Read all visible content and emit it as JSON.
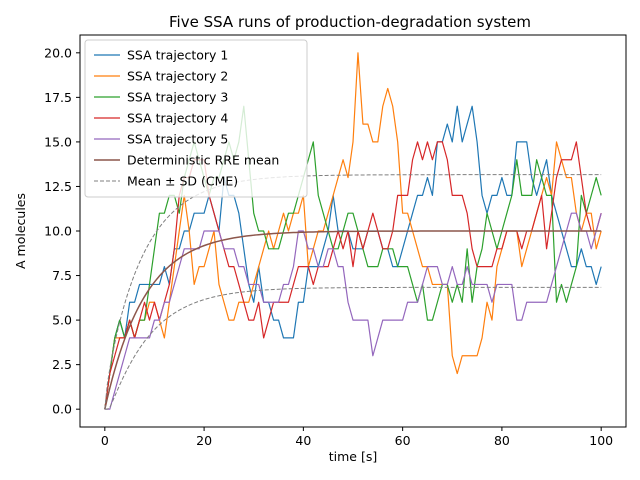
{
  "chart_data": {
    "type": "line",
    "title": "Five SSA runs of production-degradation system",
    "xlabel": "time [s]",
    "ylabel": "A molecules",
    "xlim": [
      -5,
      105
    ],
    "ylim": [
      -1.0,
      21.0
    ],
    "x_ticks": [
      0,
      20,
      40,
      60,
      80,
      100
    ],
    "y_ticks": [
      0.0,
      2.5,
      5.0,
      7.5,
      10.0,
      12.5,
      15.0,
      17.5,
      20.0
    ],
    "x_tick_labels": [
      "0",
      "20",
      "40",
      "60",
      "80",
      "100"
    ],
    "y_tick_labels": [
      "0.0",
      "2.5",
      "5.0",
      "7.5",
      "10.0",
      "12.5",
      "15.0",
      "17.5",
      "20.0"
    ],
    "legend_position": "top-left",
    "grid": false,
    "x": [
      0,
      1,
      2,
      3,
      4,
      5,
      6,
      7,
      8,
      9,
      10,
      11,
      12,
      13,
      14,
      15,
      16,
      17,
      18,
      19,
      20,
      21,
      22,
      23,
      24,
      25,
      26,
      27,
      28,
      29,
      30,
      31,
      32,
      33,
      34,
      35,
      36,
      37,
      38,
      39,
      40,
      41,
      42,
      43,
      44,
      45,
      46,
      47,
      48,
      49,
      50,
      51,
      52,
      53,
      54,
      55,
      56,
      57,
      58,
      59,
      60,
      61,
      62,
      63,
      64,
      65,
      66,
      67,
      68,
      69,
      70,
      71,
      72,
      73,
      74,
      75,
      76,
      77,
      78,
      79,
      80,
      81,
      82,
      83,
      84,
      85,
      86,
      87,
      88,
      89,
      90,
      91,
      92,
      93,
      94,
      95,
      96,
      97,
      98,
      99,
      100
    ],
    "series": [
      {
        "name": "SSA trajectory 1",
        "color": "#1f77b4",
        "style": "solid",
        "values": [
          0,
          2,
          4,
          5,
          4,
          6,
          6,
          7,
          7,
          7,
          7,
          7,
          8,
          7,
          9,
          9,
          10,
          10,
          11,
          11,
          11,
          12,
          11,
          10,
          13,
          12,
          12,
          11,
          9,
          7,
          6,
          8,
          6,
          6,
          5,
          5,
          4,
          4,
          4,
          6,
          6,
          8,
          8,
          8,
          9,
          10,
          12,
          10,
          10,
          10,
          9,
          9,
          9,
          10,
          10,
          10,
          9,
          9,
          8,
          8,
          9,
          10,
          11,
          12,
          12,
          13,
          12,
          15,
          15,
          16,
          15,
          17,
          15,
          16,
          17,
          15,
          12,
          11,
          12,
          12,
          13,
          12,
          12,
          15,
          15,
          15,
          13,
          12,
          13,
          14,
          12,
          11,
          10,
          9,
          8,
          8,
          9,
          8,
          8,
          7,
          8
        ]
      },
      {
        "name": "SSA trajectory 2",
        "color": "#ff7f0e",
        "style": "solid",
        "values": [
          0,
          2,
          4,
          4,
          4,
          5,
          4,
          5,
          5,
          6,
          6,
          5,
          4,
          6,
          8,
          10,
          12,
          10,
          7,
          8,
          8,
          9,
          10,
          7,
          6,
          5,
          5,
          6,
          6,
          6,
          7,
          8,
          9,
          10,
          9,
          10,
          11,
          10,
          11,
          11,
          12,
          8,
          9,
          10,
          10,
          11,
          12,
          13,
          14,
          13,
          15,
          20,
          16,
          16,
          15,
          15,
          17,
          18,
          17,
          15,
          11,
          11,
          10,
          9,
          8,
          8,
          7,
          7,
          7,
          7,
          3,
          2,
          3,
          3,
          3,
          3,
          4,
          6,
          5,
          8,
          9,
          10,
          10,
          10,
          8,
          9,
          10,
          11,
          12,
          13,
          12,
          15,
          14,
          13,
          13,
          11,
          10,
          11,
          11,
          9,
          10
        ]
      },
      {
        "name": "SSA trajectory 3",
        "color": "#2ca02c",
        "style": "solid",
        "values": [
          0,
          2,
          4,
          5,
          4,
          5,
          4,
          5,
          5,
          7,
          9,
          11,
          11,
          12,
          12,
          11,
          13,
          14,
          15,
          14,
          13,
          12,
          13,
          13,
          14,
          15,
          14,
          15,
          17,
          14,
          11,
          10,
          10,
          9,
          9,
          9,
          10,
          11,
          11,
          12,
          13,
          14,
          15,
          12,
          11,
          10,
          9,
          9,
          10,
          11,
          11,
          10,
          9,
          8,
          8,
          8,
          9,
          9,
          9,
          8,
          8,
          8,
          7,
          6,
          7,
          5,
          5,
          6,
          7,
          7,
          6,
          7,
          6,
          9,
          6,
          8,
          9,
          11,
          10,
          9,
          10,
          11,
          12,
          14,
          12,
          12,
          12,
          14,
          13,
          12,
          12,
          6,
          7,
          6,
          7,
          8,
          12,
          11,
          12,
          13,
          12
        ]
      },
      {
        "name": "SSA trajectory 4",
        "color": "#d62728",
        "style": "solid",
        "values": [
          0,
          2,
          3,
          4,
          4,
          5,
          4,
          5,
          6,
          5,
          6,
          5,
          6,
          7,
          9,
          12,
          13,
          13,
          14,
          14,
          14,
          12,
          11,
          10,
          9,
          8,
          8,
          7,
          6,
          5,
          5,
          6,
          4,
          5,
          6,
          6,
          6,
          6,
          7,
          8,
          8,
          8,
          7,
          8,
          8,
          8,
          9,
          10,
          9,
          10,
          8,
          10,
          9,
          10,
          11,
          10,
          9,
          9,
          10,
          12,
          12,
          12,
          14,
          15,
          14,
          15,
          14,
          15,
          15,
          14,
          12,
          12,
          12,
          11,
          9,
          8,
          8,
          8,
          8,
          9,
          9,
          10,
          10,
          10,
          9,
          10,
          10,
          11,
          12,
          9,
          11,
          13,
          14,
          14,
          14,
          15,
          13,
          11,
          10,
          10,
          11
        ]
      },
      {
        "name": "SSA trajectory 5",
        "color": "#9467bd",
        "style": "solid",
        "values": [
          0,
          0,
          1,
          2,
          3,
          4,
          4,
          4,
          4,
          4,
          5,
          5,
          6,
          6,
          7,
          8,
          9,
          9,
          9,
          9,
          10,
          10,
          10,
          10,
          9,
          9,
          9,
          8,
          8,
          7,
          7,
          7,
          6,
          6,
          6,
          6,
          7,
          7,
          8,
          10,
          10,
          9,
          9,
          8,
          8,
          9,
          9,
          8,
          8,
          6,
          5,
          5,
          5,
          5,
          3,
          4,
          5,
          5,
          5,
          5,
          5,
          6,
          6,
          6,
          7,
          8,
          8,
          8,
          7,
          7,
          8,
          7,
          7,
          8,
          7,
          7,
          7,
          7,
          6,
          7,
          7,
          7,
          7,
          5,
          5,
          6,
          6,
          6,
          6,
          6,
          7,
          8,
          9,
          10,
          11,
          11,
          10,
          10,
          9,
          10,
          11
        ]
      },
      {
        "name": "Deterministic RRE mean",
        "color": "#8c564b",
        "style": "solid",
        "function": "rre"
      },
      {
        "name": "Mean ± SD (CME)",
        "color": "#7f7f7f",
        "style": "dashed",
        "function": "band"
      }
    ]
  }
}
